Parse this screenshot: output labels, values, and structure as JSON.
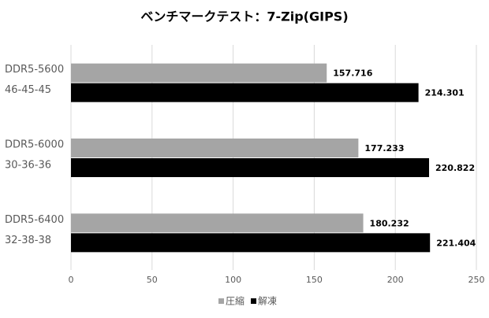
{
  "chart_data": {
    "type": "hbar",
    "title": "ベンチマークテスト：7-Zip(GIPS)",
    "categories": [
      [
        "DDR5-5600",
        "46-45-45"
      ],
      [
        "DDR5-6000",
        "30-36-36"
      ],
      [
        "DDR5-6400",
        "32-38-38"
      ]
    ],
    "series": [
      {
        "name": "圧縮",
        "color": "#a5a5a5",
        "values": [
          157.716,
          177.233,
          180.232
        ]
      },
      {
        "name": "解凍",
        "color": "#000000",
        "values": [
          214.301,
          220.822,
          221.404
        ]
      }
    ],
    "xlim": [
      0,
      250
    ],
    "xticks": [
      0,
      50,
      100,
      150,
      200,
      250
    ],
    "grid": true,
    "legend": "bottom"
  }
}
